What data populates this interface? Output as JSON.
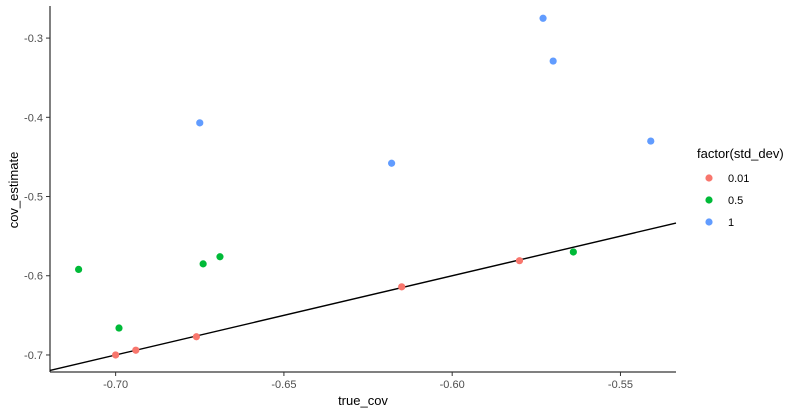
{
  "chart_data": {
    "type": "scatter",
    "title": "",
    "xlabel": "true_cov",
    "ylabel": "cov_estimate",
    "xlim": [
      -0.7195,
      -0.5335
    ],
    "ylim": [
      -0.7215,
      -0.2595
    ],
    "x_ticks": [
      -0.7,
      -0.65,
      -0.6,
      -0.55
    ],
    "x_tick_labels": [
      "-0.70",
      "-0.65",
      "-0.60",
      "-0.55"
    ],
    "y_ticks": [
      -0.7,
      -0.6,
      -0.5,
      -0.4,
      -0.3
    ],
    "y_tick_labels": [
      "-0.7",
      "-0.6",
      "-0.5",
      "-0.4",
      "-0.3"
    ],
    "grid": false,
    "legend": {
      "title": "factor(std_dev)",
      "position": "right"
    },
    "reference_line": {
      "type": "identity",
      "slope": 1,
      "intercept": 0,
      "color": "#000000"
    },
    "series": [
      {
        "name": "0.01",
        "color": "#F8766D",
        "points": [
          {
            "x": -0.7,
            "y": -0.7
          },
          {
            "x": -0.694,
            "y": -0.694
          },
          {
            "x": -0.676,
            "y": -0.677
          },
          {
            "x": -0.615,
            "y": -0.614
          },
          {
            "x": -0.58,
            "y": -0.581
          }
        ]
      },
      {
        "name": "0.5",
        "color": "#00BA38",
        "points": [
          {
            "x": -0.711,
            "y": -0.592
          },
          {
            "x": -0.699,
            "y": -0.666
          },
          {
            "x": -0.674,
            "y": -0.585
          },
          {
            "x": -0.669,
            "y": -0.576
          },
          {
            "x": -0.564,
            "y": -0.57
          }
        ]
      },
      {
        "name": "1",
        "color": "#619CFF",
        "points": [
          {
            "x": -0.675,
            "y": -0.407
          },
          {
            "x": -0.618,
            "y": -0.458
          },
          {
            "x": -0.573,
            "y": -0.275
          },
          {
            "x": -0.57,
            "y": -0.329
          },
          {
            "x": -0.541,
            "y": -0.43
          }
        ]
      }
    ]
  }
}
